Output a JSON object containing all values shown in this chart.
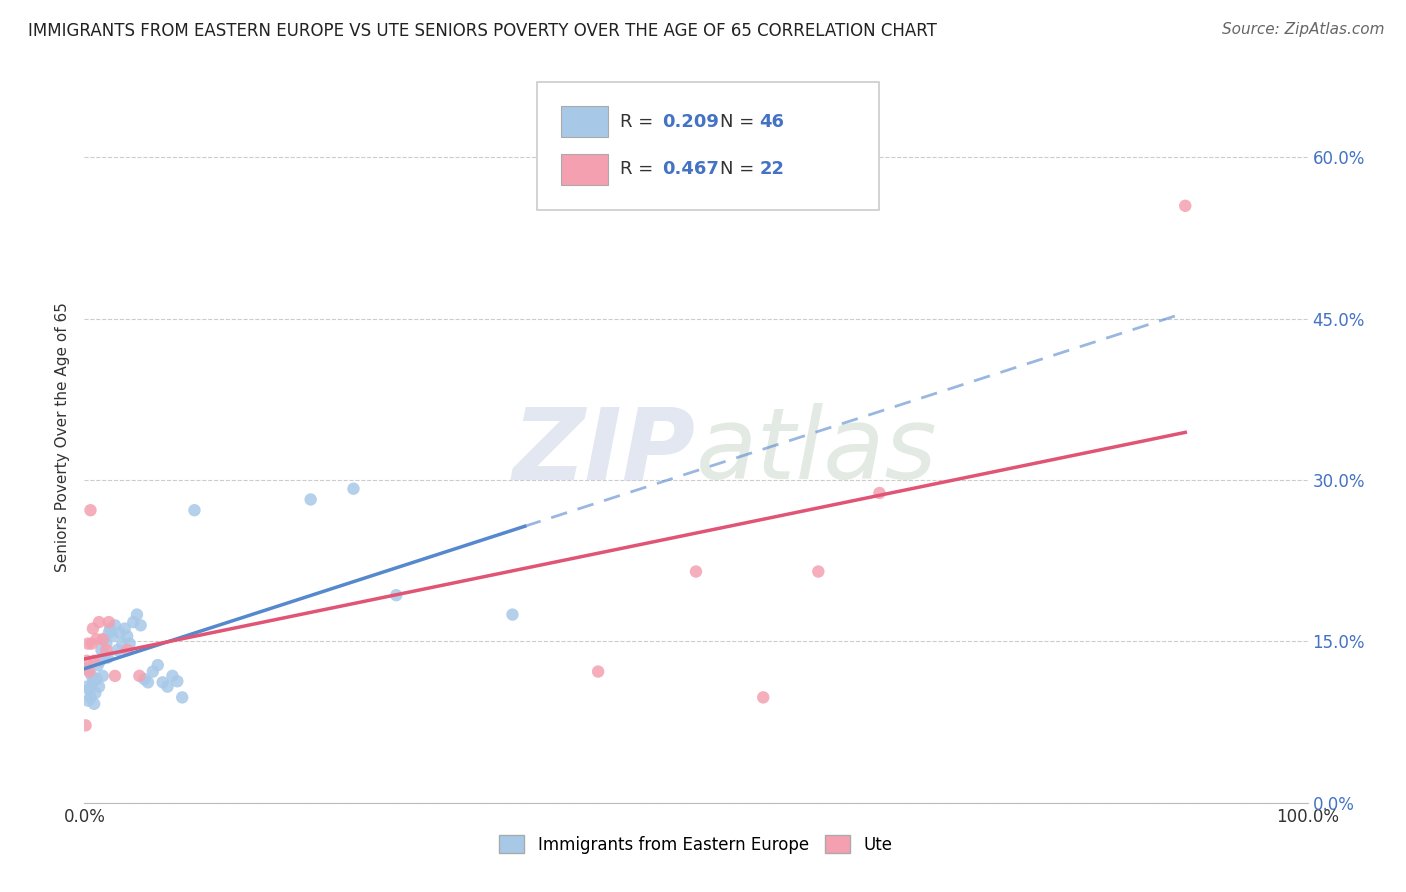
{
  "title": "IMMIGRANTS FROM EASTERN EUROPE VS UTE SENIORS POVERTY OVER THE AGE OF 65 CORRELATION CHART",
  "source": "Source: ZipAtlas.com",
  "ylabel": "Seniors Poverty Over the Age of 65",
  "xlim": [
    0,
    1.0
  ],
  "ylim": [
    0,
    0.68
  ],
  "yticks": [
    0.0,
    0.15,
    0.3,
    0.45,
    0.6
  ],
  "ytick_labels": [
    "0.0%",
    "15.0%",
    "30.0%",
    "45.0%",
    "60.0%"
  ],
  "xticks": [
    0.0,
    1.0
  ],
  "xtick_labels": [
    "0.0%",
    "100.0%"
  ],
  "r_blue": "0.209",
  "n_blue": "46",
  "r_pink": "0.467",
  "n_pink": "22",
  "legend_label_blue": "Immigrants from Eastern Europe",
  "legend_label_pink": "Ute",
  "blue_color": "#a8c8e8",
  "pink_color": "#f4a0b0",
  "trend_blue_color": "#5588cc",
  "trend_pink_color": "#e05575",
  "blue_scatter": [
    [
      0.001,
      0.125
    ],
    [
      0.002,
      0.108
    ],
    [
      0.003,
      0.095
    ],
    [
      0.004,
      0.105
    ],
    [
      0.005,
      0.098
    ],
    [
      0.006,
      0.118
    ],
    [
      0.007,
      0.112
    ],
    [
      0.008,
      0.092
    ],
    [
      0.009,
      0.102
    ],
    [
      0.01,
      0.115
    ],
    [
      0.011,
      0.128
    ],
    [
      0.012,
      0.108
    ],
    [
      0.013,
      0.132
    ],
    [
      0.014,
      0.142
    ],
    [
      0.015,
      0.118
    ],
    [
      0.016,
      0.152
    ],
    [
      0.017,
      0.138
    ],
    [
      0.018,
      0.148
    ],
    [
      0.019,
      0.135
    ],
    [
      0.02,
      0.158
    ],
    [
      0.021,
      0.162
    ],
    [
      0.023,
      0.155
    ],
    [
      0.025,
      0.165
    ],
    [
      0.027,
      0.142
    ],
    [
      0.029,
      0.158
    ],
    [
      0.031,
      0.148
    ],
    [
      0.033,
      0.162
    ],
    [
      0.035,
      0.155
    ],
    [
      0.037,
      0.148
    ],
    [
      0.04,
      0.168
    ],
    [
      0.043,
      0.175
    ],
    [
      0.046,
      0.165
    ],
    [
      0.049,
      0.115
    ],
    [
      0.052,
      0.112
    ],
    [
      0.056,
      0.122
    ],
    [
      0.06,
      0.128
    ],
    [
      0.064,
      0.112
    ],
    [
      0.068,
      0.108
    ],
    [
      0.072,
      0.118
    ],
    [
      0.076,
      0.113
    ],
    [
      0.08,
      0.098
    ],
    [
      0.09,
      0.272
    ],
    [
      0.185,
      0.282
    ],
    [
      0.22,
      0.292
    ],
    [
      0.255,
      0.193
    ],
    [
      0.35,
      0.175
    ]
  ],
  "pink_scatter": [
    [
      0.001,
      0.072
    ],
    [
      0.002,
      0.132
    ],
    [
      0.003,
      0.148
    ],
    [
      0.004,
      0.122
    ],
    [
      0.005,
      0.272
    ],
    [
      0.006,
      0.148
    ],
    [
      0.007,
      0.162
    ],
    [
      0.008,
      0.132
    ],
    [
      0.01,
      0.152
    ],
    [
      0.012,
      0.168
    ],
    [
      0.015,
      0.152
    ],
    [
      0.018,
      0.142
    ],
    [
      0.02,
      0.168
    ],
    [
      0.025,
      0.118
    ],
    [
      0.035,
      0.142
    ],
    [
      0.045,
      0.118
    ],
    [
      0.42,
      0.122
    ],
    [
      0.5,
      0.215
    ],
    [
      0.555,
      0.098
    ],
    [
      0.6,
      0.215
    ],
    [
      0.65,
      0.288
    ],
    [
      0.9,
      0.555
    ]
  ],
  "background_color": "#ffffff",
  "grid_color": "#cccccc",
  "title_fontsize": 12,
  "axis_label_fontsize": 11,
  "tick_fontsize": 12,
  "source_fontsize": 11
}
